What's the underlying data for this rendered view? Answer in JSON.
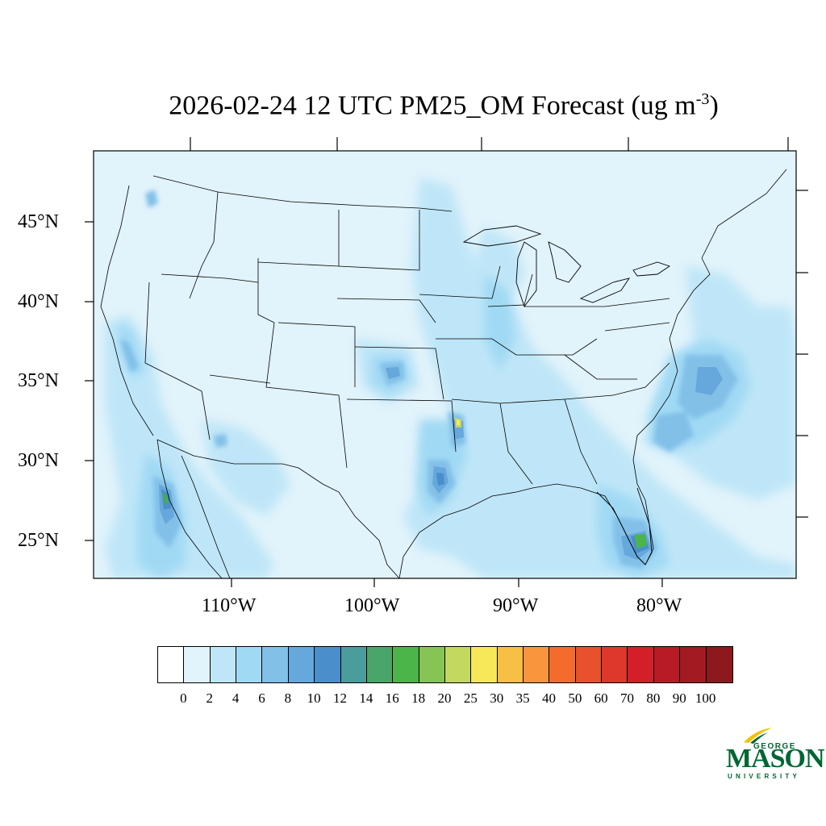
{
  "title": {
    "text": "2026-02-24 12 UTC PM25_OM Forecast (ug m",
    "superscript": "-3",
    "suffix": ")"
  },
  "map": {
    "projection": "Lambert conformal (CONUS)",
    "lat_labels": [
      "45°N",
      "40°N",
      "35°N",
      "30°N",
      "25°N"
    ],
    "lon_labels": [
      "110°W",
      "100°W",
      "90°W",
      "80°W"
    ],
    "background_level": "0-2",
    "hotspots": [
      {
        "region": "Baja California",
        "level": "12-14"
      },
      {
        "region": "Southwest Florida",
        "level": "14-16"
      },
      {
        "region": "Arkansas/Louisiana",
        "level": "25-30"
      },
      {
        "region": "East Texas",
        "level": "10-12"
      },
      {
        "region": "Western Kansas",
        "level": "8-10"
      },
      {
        "region": "Off North Carolina coast",
        "level": "8-10"
      }
    ]
  },
  "colorbar": {
    "labels": [
      "0",
      "2",
      "4",
      "6",
      "8",
      "10",
      "12",
      "14",
      "16",
      "18",
      "20",
      "25",
      "30",
      "35",
      "40",
      "50",
      "60",
      "70",
      "80",
      "90",
      "100"
    ],
    "colors": [
      "#ffffff",
      "#e1f3fb",
      "#bfe6f8",
      "#a0d9f4",
      "#82c0e8",
      "#66a8dc",
      "#4a8ecb",
      "#4a9d9c",
      "#4aa56b",
      "#4bb549",
      "#86c555",
      "#c2d85e",
      "#f7e85a",
      "#f8bf47",
      "#f8953d",
      "#f36c2e",
      "#e9502d",
      "#dd382b",
      "#d31f2a",
      "#b81b25",
      "#a31a23",
      "#8d181e"
    ]
  },
  "logo": {
    "top_text": "GEORGE",
    "main_text": "MASON",
    "bottom_text": "UNIVERSITY",
    "color": "#006633",
    "accent": "#f2c300"
  }
}
